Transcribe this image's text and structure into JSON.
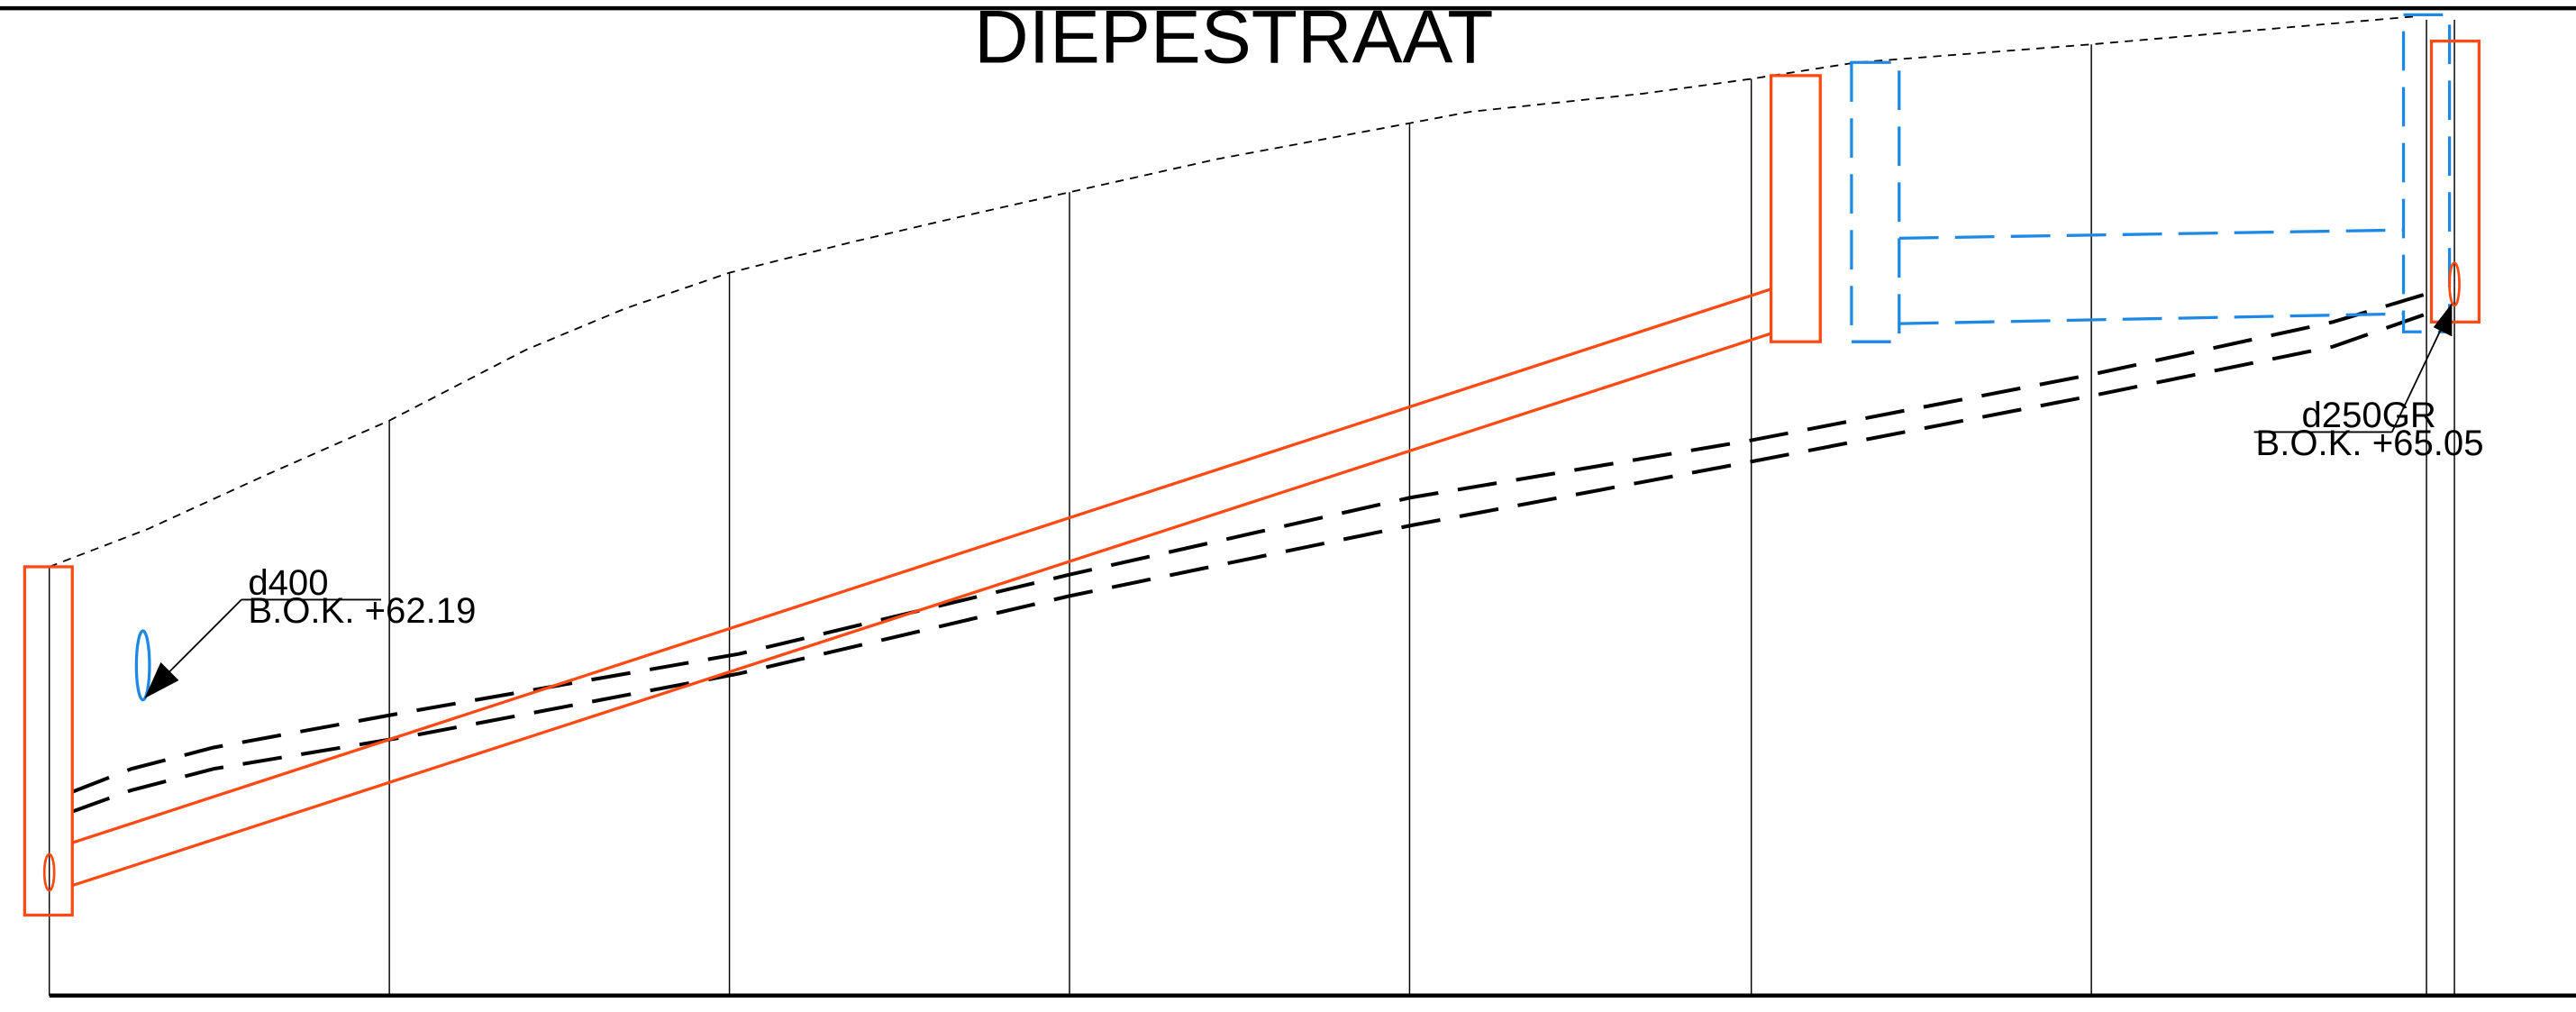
{
  "title": "DIEPESTRAAT",
  "annotations": [
    {
      "pipe": "d400",
      "level": "B.O.K. +62.19"
    },
    {
      "pipe": "d250GR",
      "level": "B.O.K. +65.05"
    }
  ],
  "colors": {
    "background": "#ffffff",
    "line": "#000000",
    "new_sewer": "#ff4a14",
    "existing_water": "#1e88e5"
  }
}
